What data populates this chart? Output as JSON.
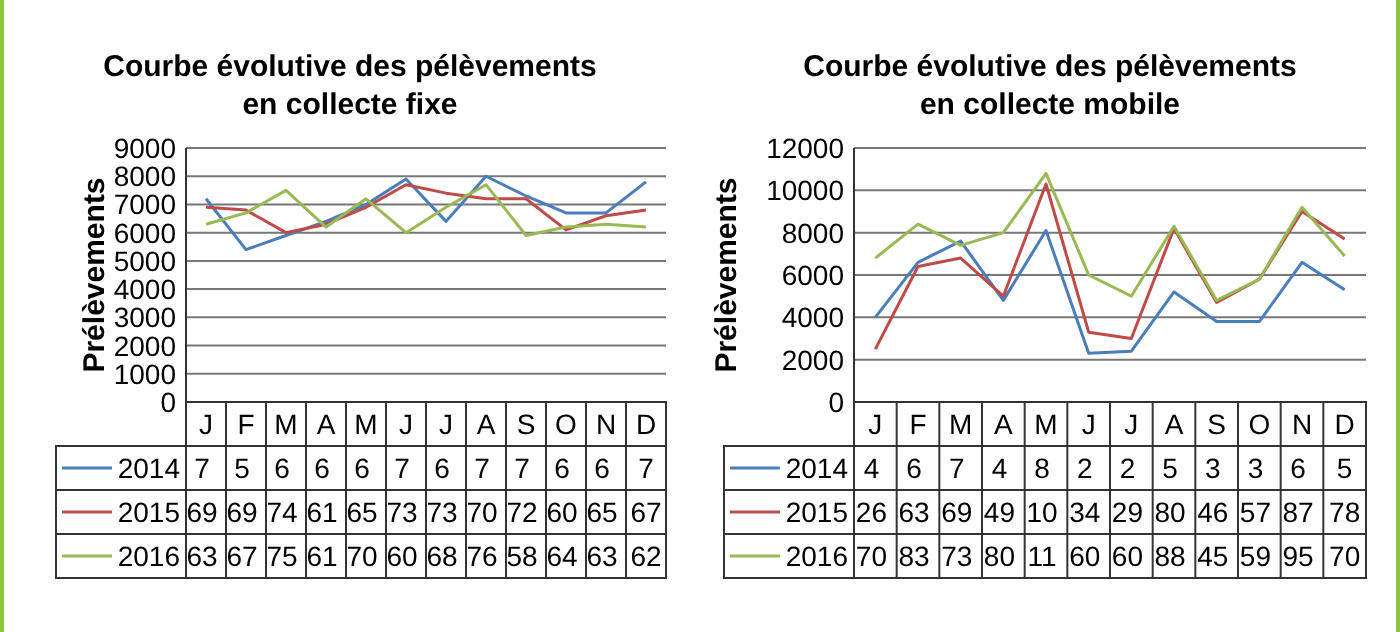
{
  "chart_data": [
    {
      "type": "line",
      "title": "Courbe évolutive des pélèvements\nen collecte fixe",
      "ylabel": "Prélèvements",
      "categories": [
        "J",
        "F",
        "M",
        "A",
        "M",
        "J",
        "J",
        "A",
        "S",
        "O",
        "N",
        "D"
      ],
      "ylim": [
        0,
        9000
      ],
      "yticks": [
        0,
        1000,
        2000,
        3000,
        4000,
        5000,
        6000,
        7000,
        8000,
        9000
      ],
      "grid": "y",
      "legend": "bottom",
      "marker": "none",
      "series": [
        {
          "name": "2014",
          "color": "#4a7ebb",
          "values": [
            7200,
            5400,
            5900,
            6400,
            7000,
            7900,
            6400,
            8000,
            7300,
            6700,
            6700,
            7800
          ]
        },
        {
          "name": "2015",
          "color": "#be4b48",
          "values": [
            6900,
            6800,
            6000,
            6300,
            6900,
            7700,
            7400,
            7200,
            7200,
            6100,
            6600,
            6800
          ]
        },
        {
          "name": "2016",
          "color": "#98b954",
          "values": [
            6300,
            6700,
            7500,
            6200,
            7200,
            6000,
            6900,
            7700,
            5900,
            6200,
            6300,
            6200
          ]
        }
      ],
      "annotations": [
        "7 5 6 6 6 7 6 7 7 6 6 7",
        "69 69 74 61 65 73 73 70 72 60 65 67",
        "63 67 75 61 70 60 68 76 58 64 63 62"
      ]
    },
    {
      "type": "line",
      "title": "Courbe évolutive des pélèvements\nen collecte mobile",
      "ylabel": "Prélèvements",
      "categories": [
        "J",
        "F",
        "M",
        "A",
        "M",
        "J",
        "J",
        "A",
        "S",
        "O",
        "N",
        "D"
      ],
      "ylim": [
        0,
        12000
      ],
      "yticks": [
        0,
        2000,
        4000,
        6000,
        8000,
        10000,
        12000
      ],
      "grid": "y",
      "legend": "bottom",
      "marker": "none",
      "series": [
        {
          "name": "2014",
          "color": "#4a7ebb",
          "values": [
            4000,
            6600,
            7600,
            4800,
            8100,
            2300,
            2400,
            5200,
            3800,
            3800,
            6600,
            5300
          ]
        },
        {
          "name": "2015",
          "color": "#be4b48",
          "values": [
            2500,
            6400,
            6800,
            5000,
            10300,
            3300,
            3000,
            8200,
            4700,
            5800,
            9000,
            7700
          ]
        },
        {
          "name": "2016",
          "color": "#98b954",
          "values": [
            6800,
            8400,
            7400,
            8000,
            10800,
            6000,
            5000,
            8300,
            4800,
            5800,
            9200,
            6900
          ]
        }
      ],
      "annotations": [
        "4 6 7 4 8 2 2 5 3 3 6 5",
        "26 63 69 49 10 34 29 80 46 57 87 78",
        "70 83 73 80 11 60 60 88 45 59 95 70"
      ]
    }
  ]
}
